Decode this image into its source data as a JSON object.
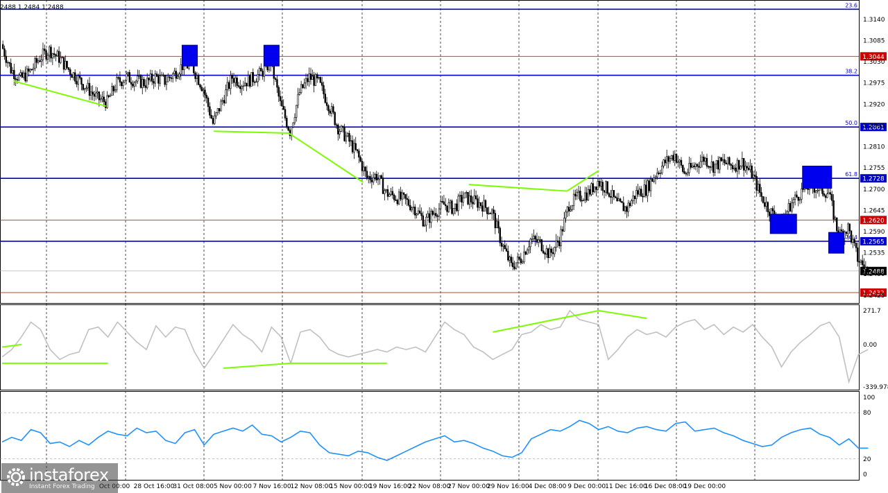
{
  "header_text": "2488 1.2484 1.2488",
  "colors": {
    "blue_level": "#0000cc",
    "red_level": "#cc2200",
    "box_fill": "#0000ee",
    "divergence": "#7cfc00",
    "cci_line": "#c0c0c0",
    "stoch_line": "#1e90ff",
    "grid": "#000000",
    "price_tag": "#cc0000"
  },
  "chart_data": [
    {
      "type": "candlestick",
      "name": "price",
      "ylim": [
        1.2405,
        1.319
      ],
      "y_ticks": [
        "1.3140",
        "1.3085",
        "1.3030",
        "1.2975",
        "1.2920",
        "1.2865",
        "1.2810",
        "1.2755",
        "1.2700",
        "1.2645",
        "1.2590",
        "1.2535",
        "1.2480",
        "1.2425"
      ],
      "fib_levels": [
        {
          "label": "23.6",
          "price": 1.3166
        },
        {
          "label": "38.2",
          "price": 1.2995
        },
        {
          "label": "50.0",
          "price": 1.2861,
          "tag": "1.2861"
        },
        {
          "label": "61.8",
          "price": 1.2728,
          "tag": "1.2728"
        },
        {
          "label": "76.4",
          "price": 1.2565,
          "tag": "1.2565"
        }
      ],
      "red_levels": [
        {
          "price": 1.3044,
          "tag": "1.3044"
        },
        {
          "price": 1.262,
          "tag": "1.2620"
        },
        {
          "price": 1.2432,
          "tag": "1.2432"
        }
      ],
      "current_price": {
        "price": 1.2488,
        "tag": "1.2488"
      },
      "marker_boxes": [
        {
          "x": 19.5,
          "price": 1.3046
        },
        {
          "x": 28,
          "price": 1.3046
        },
        {
          "x": 81.2,
          "price": 1.261
        },
        {
          "x": 84.7,
          "price": 1.2731
        },
        {
          "x": 86.7,
          "price": 1.2561
        }
      ],
      "divergence_lines": [
        {
          "from": [
            1.2,
            1.298
          ],
          "to": [
            10.8,
            1.2915
          ]
        },
        {
          "from": [
            22,
            1.285
          ],
          "to": [
            29.8,
            1.2845
          ]
        },
        {
          "from": [
            29.8,
            1.2845
          ],
          "to": [
            37.5,
            1.2718
          ]
        },
        {
          "from": [
            48.5,
            1.2712
          ],
          "to": [
            58.7,
            1.2695
          ]
        },
        {
          "from": [
            58.7,
            1.2695
          ],
          "to": [
            62,
            1.2748
          ]
        }
      ],
      "dates": [
        "28 Oct 16:00",
        "31 Oct 08:00",
        "5 Nov 00:00",
        "7 Nov 16:00",
        "12 Nov 08:00",
        "15 Nov 00:00",
        "19 Nov 16:00",
        "22 Nov 08:00",
        "27 Nov 00:00",
        "29 Nov 16:00",
        "4 Dec 08:00",
        "9 Dec 00:00",
        "11 Dec 16:00",
        "16 Dec 08:00",
        "19 Dec 00:00"
      ],
      "date_label_partial": "Oct 00:00",
      "close_path": [
        [
          0,
          1.3075
        ],
        [
          1,
          1.301
        ],
        [
          2,
          1.2985
        ],
        [
          3,
          1.3005
        ],
        [
          4,
          1.304
        ],
        [
          5,
          1.306
        ],
        [
          6,
          1.304
        ],
        [
          7,
          1.301
        ],
        [
          8,
          1.2985
        ],
        [
          9,
          1.296
        ],
        [
          10,
          1.2935
        ],
        [
          11,
          1.2925
        ],
        [
          12,
          1.2975
        ],
        [
          13,
          1.299
        ],
        [
          14,
          1.298
        ],
        [
          15,
          1.2975
        ],
        [
          16,
          1.299
        ],
        [
          17,
          1.298
        ],
        [
          18,
          1.3
        ],
        [
          19,
          1.3025
        ],
        [
          20,
          1.301
        ],
        [
          21,
          1.296
        ],
        [
          22,
          1.287
        ],
        [
          23,
          1.293
        ],
        [
          24,
          1.299
        ],
        [
          25,
          1.2975
        ],
        [
          26,
          1.2985
        ],
        [
          27,
          1.3
        ],
        [
          28,
          1.303
        ],
        [
          29,
          1.292
        ],
        [
          30,
          1.285
        ],
        [
          31,
          1.295
        ],
        [
          32,
          1.299
        ],
        [
          33,
          1.2975
        ],
        [
          34,
          1.292
        ],
        [
          35,
          1.286
        ],
        [
          36,
          1.283
        ],
        [
          37,
          1.279
        ],
        [
          38,
          1.273
        ],
        [
          39,
          1.2735
        ],
        [
          40,
          1.269
        ],
        [
          41,
          1.268
        ],
        [
          42,
          1.267
        ],
        [
          43,
          1.265
        ],
        [
          44,
          1.2615
        ],
        [
          45,
          1.264
        ],
        [
          46,
          1.266
        ],
        [
          47,
          1.265
        ],
        [
          48,
          1.268
        ],
        [
          49,
          1.267
        ],
        [
          50,
          1.266
        ],
        [
          51,
          1.264
        ],
        [
          52,
          1.256
        ],
        [
          53,
          1.25
        ],
        [
          54,
          1.252
        ],
        [
          55,
          1.257
        ],
        [
          56,
          1.256
        ],
        [
          57,
          1.253
        ],
        [
          58,
          1.257
        ],
        [
          59,
          1.266
        ],
        [
          60,
          1.268
        ],
        [
          61,
          1.269
        ],
        [
          62,
          1.272
        ],
        [
          63,
          1.27
        ],
        [
          64,
          1.266
        ],
        [
          65,
          1.265
        ],
        [
          66,
          1.269
        ],
        [
          67,
          1.27
        ],
        [
          68,
          1.274
        ],
        [
          69,
          1.277
        ],
        [
          70,
          1.279
        ],
        [
          71,
          1.274
        ],
        [
          72,
          1.276
        ],
        [
          73,
          1.278
        ],
        [
          74,
          1.276
        ],
        [
          75,
          1.277
        ],
        [
          76,
          1.276
        ],
        [
          77,
          1.277
        ],
        [
          78,
          1.274
        ],
        [
          79,
          1.268
        ],
        [
          80,
          1.264
        ],
        [
          81,
          1.261
        ],
        [
          82,
          1.266
        ],
        [
          83,
          1.269
        ],
        [
          84,
          1.271
        ],
        [
          85,
          1.27
        ],
        [
          86,
          1.269
        ],
        [
          87,
          1.258
        ],
        [
          88,
          1.26
        ],
        [
          89,
          1.252
        ],
        [
          90,
          1.2488
        ]
      ]
    },
    {
      "type": "line",
      "name": "CCI",
      "y_ticks": [
        "271.7",
        "0.00",
        "-339.978"
      ],
      "ylim": [
        -339.978,
        271.7
      ],
      "values": [
        -100,
        -40,
        60,
        180,
        120,
        -40,
        -120,
        -80,
        -60,
        120,
        140,
        60,
        180,
        100,
        20,
        -40,
        150,
        60,
        140,
        120,
        -60,
        -190,
        -80,
        40,
        160,
        80,
        30,
        -60,
        140,
        60,
        -150,
        100,
        120,
        60,
        -40,
        -80,
        -100,
        -80,
        -60,
        -40,
        -60,
        -20,
        -40,
        -20,
        -60,
        60,
        180,
        120,
        80,
        -20,
        -60,
        -120,
        -80,
        -40,
        80,
        100,
        160,
        120,
        140,
        271.7,
        200,
        180,
        160,
        -120,
        -40,
        60,
        120,
        80,
        100,
        60,
        140,
        180,
        200,
        120,
        160,
        80,
        140,
        100,
        160,
        60,
        -20,
        -180,
        -60,
        20,
        80,
        150,
        180,
        60,
        -300,
        -80,
        -40
      ],
      "divergence_lines": [
        {
          "from": [
            0,
            -20
          ],
          "to": [
            2,
            0
          ]
        },
        {
          "from": [
            0,
            -150
          ],
          "to": [
            11,
            -150
          ]
        },
        {
          "from": [
            23,
            -190
          ],
          "to": [
            30,
            -150
          ]
        },
        {
          "from": [
            30,
            -150
          ],
          "to": [
            40,
            -150
          ]
        },
        {
          "from": [
            51,
            100
          ],
          "to": [
            62,
            271.7
          ]
        },
        {
          "from": [
            62,
            271.7
          ],
          "to": [
            67,
            210
          ]
        }
      ]
    },
    {
      "type": "line",
      "name": "Stochastic",
      "y_ticks": [
        "100",
        "80",
        "20",
        "0"
      ],
      "ylim": [
        0,
        100
      ],
      "values": [
        42,
        48,
        44,
        58,
        54,
        40,
        42,
        36,
        44,
        38,
        48,
        56,
        52,
        50,
        60,
        54,
        56,
        44,
        40,
        54,
        58,
        38,
        52,
        56,
        60,
        56,
        64,
        52,
        50,
        42,
        48,
        56,
        54,
        38,
        28,
        26,
        24,
        30,
        28,
        22,
        18,
        24,
        30,
        36,
        42,
        46,
        50,
        42,
        44,
        40,
        34,
        30,
        24,
        22,
        28,
        46,
        52,
        58,
        56,
        62,
        70,
        66,
        58,
        62,
        56,
        54,
        60,
        62,
        58,
        56,
        66,
        68,
        56,
        58,
        60,
        54,
        50,
        44,
        40,
        36,
        38,
        48,
        54,
        58,
        60,
        52,
        48,
        38,
        46,
        34,
        34
      ]
    }
  ]
}
